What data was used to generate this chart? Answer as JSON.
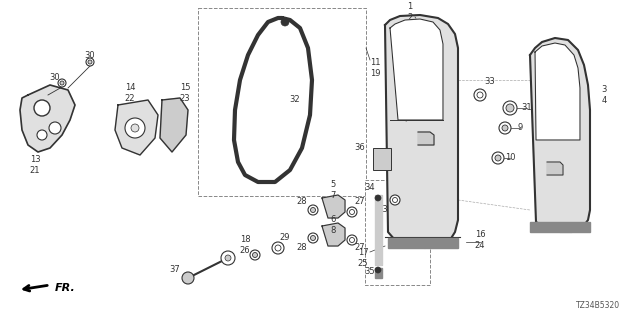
{
  "background_color": "#ffffff",
  "part_number": "TZ34B5320",
  "fr_label": "FR.",
  "line_color": "#333333",
  "gray_fill": "#cccccc",
  "light_gray": "#e0e0e0"
}
